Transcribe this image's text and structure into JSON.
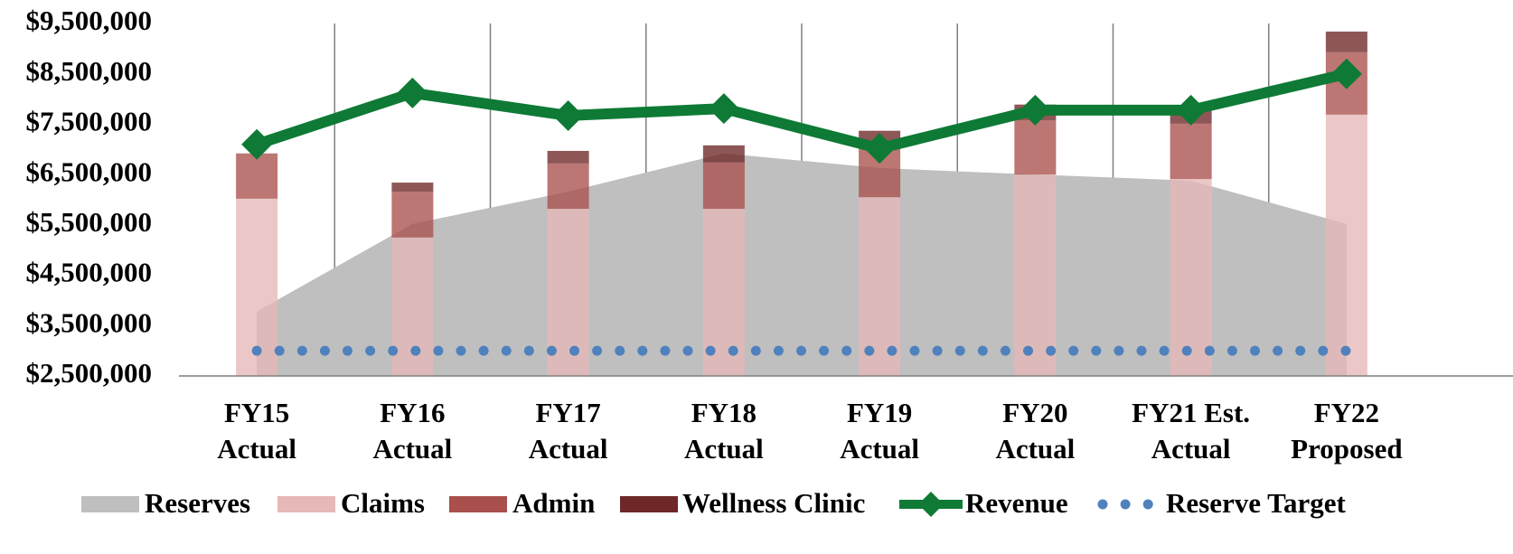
{
  "chart_data": {
    "type": "combo",
    "categories": [
      "FY15 Actual",
      "FY16 Actual",
      "FY17 Actual",
      "FY18 Actual",
      "FY19 Actual",
      "FY20 Actual",
      "FY21 Est. Actual",
      "FY22 Proposed"
    ],
    "ylim": [
      2500000,
      9500000
    ],
    "yticks": [
      {
        "value": 2500000,
        "label": "$2,500,000"
      },
      {
        "value": 3500000,
        "label": "$3,500,000"
      },
      {
        "value": 4500000,
        "label": "$4,500,000"
      },
      {
        "value": 5500000,
        "label": "$5,500,000"
      },
      {
        "value": 6500000,
        "label": "$6,500,000"
      },
      {
        "value": 7500000,
        "label": "$7,500,000"
      },
      {
        "value": 8500000,
        "label": "$8,500,000"
      },
      {
        "value": 9500000,
        "label": "$9,500,000"
      }
    ],
    "legend": "bottom",
    "series": [
      {
        "name": "Reserves",
        "kind": "area",
        "color": "#bfbfbf",
        "values": [
          3780000,
          5520000,
          6160000,
          6920000,
          6630000,
          6500000,
          6380000,
          5520000
        ]
      },
      {
        "name": "Claims",
        "kind": "stacked-bar",
        "color": "#e6b8b7",
        "values": [
          6020000,
          5250000,
          5820000,
          5820000,
          6050000,
          6500000,
          6410000,
          7690000
        ]
      },
      {
        "name": "Admin",
        "kind": "stacked-bar",
        "color": "#a94f4c",
        "values": [
          900000,
          910000,
          900000,
          920000,
          1030000,
          1080000,
          1100000,
          1240000
        ]
      },
      {
        "name": "Wellness Clinic",
        "kind": "stacked-bar",
        "color": "#6e2828",
        "values": [
          0,
          180000,
          250000,
          340000,
          290000,
          310000,
          340000,
          410000
        ]
      },
      {
        "name": "Revenue",
        "kind": "line",
        "color": "#0e7a35",
        "values": [
          7100000,
          8120000,
          7670000,
          7810000,
          7020000,
          7780000,
          7780000,
          8500000
        ]
      },
      {
        "name": "Reserve Target",
        "kind": "dotted",
        "color": "#4f81bd",
        "values": [
          3000000,
          3000000,
          3000000,
          3000000,
          3000000,
          3000000,
          3000000,
          3000000
        ]
      }
    ]
  }
}
